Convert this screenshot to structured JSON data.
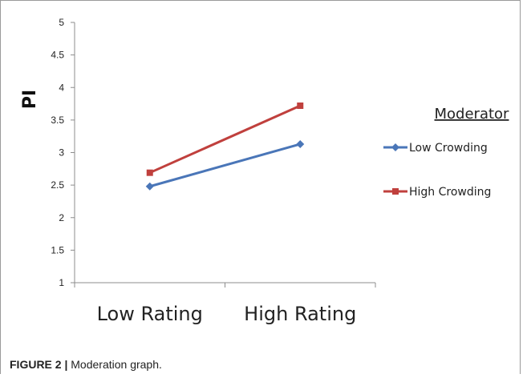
{
  "chart_data": {
    "type": "line",
    "categories": [
      "Low Rating",
      "High Rating"
    ],
    "series": [
      {
        "name": "Low Crowding",
        "values": [
          2.48,
          3.13
        ],
        "color": "#4a76b8",
        "marker": "diamond"
      },
      {
        "name": "High Crowding",
        "values": [
          2.69,
          3.72
        ],
        "color": "#c0403d",
        "marker": "square"
      }
    ],
    "ylabel": "PI",
    "xlabel": "",
    "ylim": [
      1,
      5
    ],
    "yticks": [
      "1",
      "1.5",
      "2",
      "2.5",
      "3",
      "3.5",
      "4",
      "4.5",
      "5"
    ],
    "legend_title": "Moderator",
    "legend_position": "right",
    "grid": false
  },
  "caption": {
    "label": "FIGURE 2 |",
    "text": " Moderation graph."
  }
}
